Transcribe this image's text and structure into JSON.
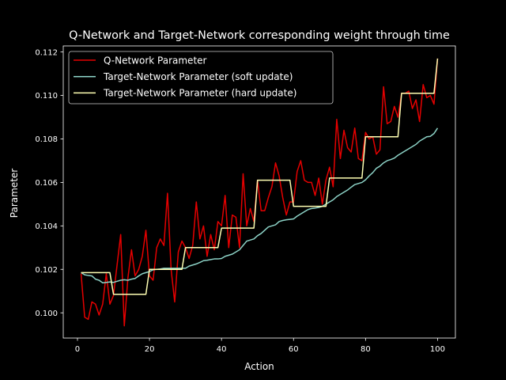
{
  "chart_data": {
    "type": "line",
    "title": "Q-Network and Target-Network corresponding weight through time",
    "xlabel": "Action",
    "ylabel": "Parameter",
    "xlim": [
      -3.95,
      104.95
    ],
    "ylim": [
      0.09884,
      0.11228
    ],
    "xticks": [
      0,
      20,
      40,
      60,
      80,
      100
    ],
    "yticks": [
      0.1,
      0.102,
      0.104,
      0.106,
      0.108,
      0.11,
      0.112
    ],
    "ytick_labels": [
      "0.100",
      "0.102",
      "0.104",
      "0.106",
      "0.108",
      "0.110",
      "0.112"
    ],
    "grid": false,
    "legend": "upper-left",
    "series": [
      {
        "name": "Q-Network Parameter",
        "color": "#e50000",
        "x": [
          1,
          2,
          3,
          4,
          5,
          6,
          7,
          8,
          9,
          10,
          11,
          12,
          13,
          14,
          15,
          16,
          17,
          18,
          19,
          20,
          21,
          22,
          23,
          24,
          25,
          26,
          27,
          28,
          29,
          30,
          31,
          32,
          33,
          34,
          35,
          36,
          37,
          38,
          39,
          40,
          41,
          42,
          43,
          44,
          45,
          46,
          47,
          48,
          49,
          50,
          51,
          52,
          53,
          54,
          55,
          56,
          57,
          58,
          59,
          60,
          61,
          62,
          63,
          64,
          65,
          66,
          67,
          68,
          69,
          70,
          71,
          72,
          73,
          74,
          75,
          76,
          77,
          78,
          79,
          80,
          81,
          82,
          83,
          84,
          85,
          86,
          87,
          88,
          89,
          90,
          91,
          92,
          93,
          94,
          95,
          96,
          97,
          98,
          99,
          100
        ],
        "values": [
          0.1018,
          0.0998,
          0.0997,
          0.1005,
          0.1004,
          0.0999,
          0.1004,
          0.1018,
          0.1004,
          0.1008,
          0.1022,
          0.1036,
          0.0994,
          0.1016,
          0.1029,
          0.1017,
          0.102,
          0.1026,
          0.1038,
          0.1017,
          0.1015,
          0.103,
          0.1034,
          0.1031,
          0.1055,
          0.102,
          0.1005,
          0.1028,
          0.1033,
          0.103,
          0.1025,
          0.1031,
          0.1051,
          0.1034,
          0.104,
          0.1026,
          0.1036,
          0.1029,
          0.1042,
          0.104,
          0.1054,
          0.103,
          0.1045,
          0.1044,
          0.103,
          0.1064,
          0.104,
          0.1048,
          0.1042,
          0.1061,
          0.1047,
          0.1047,
          0.1053,
          0.1058,
          0.1069,
          0.1063,
          0.1053,
          0.1045,
          0.1051,
          0.1051,
          0.1065,
          0.107,
          0.1061,
          0.106,
          0.106,
          0.1054,
          0.1062,
          0.105,
          0.1061,
          0.1067,
          0.1058,
          0.1089,
          0.1071,
          0.1084,
          0.1076,
          0.1074,
          0.1085,
          0.1071,
          0.107,
          0.1083,
          0.108,
          0.1081,
          0.1073,
          0.1075,
          0.1104,
          0.1087,
          0.1088,
          0.1095,
          0.109,
          0.1101,
          0.1101,
          0.1102,
          0.1094,
          0.1098,
          0.1088,
          0.1105,
          0.1099,
          0.11,
          0.1096,
          0.1117
        ]
      },
      {
        "name": "Target-Network Parameter (soft update)",
        "color": "#8dd3c7",
        "x": [
          1,
          2,
          3,
          4,
          5,
          6,
          7,
          8,
          9,
          10,
          11,
          12,
          13,
          14,
          15,
          16,
          17,
          18,
          19,
          20,
          21,
          22,
          23,
          24,
          25,
          26,
          27,
          28,
          29,
          30,
          31,
          32,
          33,
          34,
          35,
          36,
          37,
          38,
          39,
          40,
          41,
          42,
          43,
          44,
          45,
          46,
          47,
          48,
          49,
          50,
          51,
          52,
          53,
          54,
          55,
          56,
          57,
          58,
          59,
          60,
          61,
          62,
          63,
          64,
          65,
          66,
          67,
          68,
          69,
          70,
          71,
          72,
          73,
          74,
          75,
          76,
          77,
          78,
          79,
          80,
          81,
          82,
          83,
          84,
          85,
          86,
          87,
          88,
          89,
          90,
          91,
          92,
          93,
          94,
          95,
          96,
          97,
          98,
          99,
          100
        ],
        "values": [
          0.10185,
          0.10175,
          0.10172,
          0.1017,
          0.10155,
          0.1015,
          0.10138,
          0.1014,
          0.10142,
          0.1014,
          0.10145,
          0.1015,
          0.10152,
          0.1015,
          0.10155,
          0.10158,
          0.1017,
          0.1018,
          0.10185,
          0.1019,
          0.10198,
          0.102,
          0.10202,
          0.10205,
          0.10205,
          0.10205,
          0.10205,
          0.10205,
          0.10205,
          0.10205,
          0.10215,
          0.1022,
          0.10225,
          0.10232,
          0.1024,
          0.10242,
          0.10245,
          0.10248,
          0.10248,
          0.1025,
          0.1026,
          0.10265,
          0.1027,
          0.1028,
          0.1029,
          0.1031,
          0.1033,
          0.10335,
          0.1034,
          0.10355,
          0.10365,
          0.1038,
          0.10395,
          0.104,
          0.10405,
          0.1042,
          0.10425,
          0.10428,
          0.1043,
          0.10432,
          0.10445,
          0.10455,
          0.10465,
          0.10475,
          0.1048,
          0.10482,
          0.10485,
          0.1049,
          0.105,
          0.1051,
          0.1052,
          0.10535,
          0.10545,
          0.10555,
          0.10565,
          0.10578,
          0.1059,
          0.10595,
          0.106,
          0.10612,
          0.1063,
          0.10645,
          0.10665,
          0.10675,
          0.1069,
          0.107,
          0.10705,
          0.10712,
          0.10725,
          0.10735,
          0.10745,
          0.10755,
          0.10765,
          0.10775,
          0.1079,
          0.108,
          0.1081,
          0.10812,
          0.10825,
          0.1085
        ]
      },
      {
        "name": "Target-Network Parameter (hard update)",
        "color": "#ffffb3",
        "x": [
          1,
          2,
          3,
          4,
          5,
          6,
          7,
          8,
          9,
          10,
          11,
          12,
          13,
          14,
          15,
          16,
          17,
          18,
          19,
          20,
          21,
          22,
          23,
          24,
          25,
          26,
          27,
          28,
          29,
          30,
          31,
          32,
          33,
          34,
          35,
          36,
          37,
          38,
          39,
          40,
          41,
          42,
          43,
          44,
          45,
          46,
          47,
          48,
          49,
          50,
          51,
          52,
          53,
          54,
          55,
          56,
          57,
          58,
          59,
          60,
          61,
          62,
          63,
          64,
          65,
          66,
          67,
          68,
          69,
          70,
          71,
          72,
          73,
          74,
          75,
          76,
          77,
          78,
          79,
          80,
          81,
          82,
          83,
          84,
          85,
          86,
          87,
          88,
          89,
          90,
          91,
          92,
          93,
          94,
          95,
          96,
          97,
          98,
          99,
          100
        ],
        "values": [
          0.10185,
          0.10185,
          0.10185,
          0.10185,
          0.10185,
          0.10185,
          0.10185,
          0.10185,
          0.10185,
          0.10085,
          0.10085,
          0.10085,
          0.10085,
          0.10085,
          0.10085,
          0.10085,
          0.10085,
          0.10085,
          0.10085,
          0.102,
          0.102,
          0.102,
          0.102,
          0.102,
          0.102,
          0.102,
          0.102,
          0.102,
          0.102,
          0.103,
          0.103,
          0.103,
          0.103,
          0.103,
          0.103,
          0.103,
          0.103,
          0.103,
          0.103,
          0.1039,
          0.1039,
          0.1039,
          0.1039,
          0.1039,
          0.1039,
          0.1039,
          0.1039,
          0.1039,
          0.1039,
          0.1061,
          0.1061,
          0.1061,
          0.1061,
          0.1061,
          0.1061,
          0.1061,
          0.1061,
          0.1061,
          0.1061,
          0.1049,
          0.1049,
          0.1049,
          0.1049,
          0.1049,
          0.1049,
          0.1049,
          0.1049,
          0.1049,
          0.1049,
          0.1062,
          0.1062,
          0.1062,
          0.1062,
          0.1062,
          0.1062,
          0.1062,
          0.1062,
          0.1062,
          0.1062,
          0.1081,
          0.1081,
          0.1081,
          0.1081,
          0.1081,
          0.1081,
          0.1081,
          0.1081,
          0.1081,
          0.1081,
          0.1101,
          0.1101,
          0.1101,
          0.1101,
          0.1101,
          0.1101,
          0.1101,
          0.1101,
          0.1101,
          0.1101,
          0.1117
        ]
      }
    ]
  }
}
